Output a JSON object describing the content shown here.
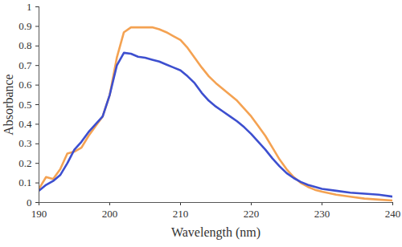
{
  "chart_data": {
    "type": "line",
    "x_label": "Wavelength (nm)",
    "y_label": "Absorbance",
    "x": [
      190,
      191,
      192,
      193,
      194,
      195,
      196,
      197,
      198,
      199,
      200,
      201,
      202,
      203,
      204,
      205,
      206,
      207,
      208,
      209,
      210,
      211,
      212,
      213,
      214,
      215,
      216,
      217,
      218,
      219,
      220,
      221,
      222,
      223,
      224,
      225,
      226,
      227,
      228,
      229,
      230,
      232,
      234,
      236,
      238,
      240
    ],
    "series": [
      {
        "color": "#f4a252",
        "values": [
          0.07,
          0.13,
          0.12,
          0.17,
          0.25,
          0.26,
          0.28,
          0.34,
          0.39,
          0.44,
          0.55,
          0.74,
          0.87,
          0.895,
          0.895,
          0.895,
          0.895,
          0.885,
          0.87,
          0.85,
          0.83,
          0.79,
          0.74,
          0.69,
          0.645,
          0.61,
          0.58,
          0.55,
          0.52,
          0.48,
          0.44,
          0.39,
          0.34,
          0.28,
          0.22,
          0.17,
          0.13,
          0.1,
          0.08,
          0.065,
          0.055,
          0.04,
          0.03,
          0.02,
          0.015,
          0.01
        ]
      },
      {
        "color": "#3d4fcf",
        "values": [
          0.06,
          0.09,
          0.11,
          0.14,
          0.2,
          0.27,
          0.31,
          0.36,
          0.4,
          0.44,
          0.55,
          0.7,
          0.765,
          0.76,
          0.745,
          0.74,
          0.73,
          0.72,
          0.705,
          0.69,
          0.675,
          0.645,
          0.61,
          0.56,
          0.52,
          0.49,
          0.465,
          0.44,
          0.415,
          0.385,
          0.35,
          0.31,
          0.27,
          0.225,
          0.185,
          0.15,
          0.125,
          0.105,
          0.09,
          0.08,
          0.07,
          0.06,
          0.05,
          0.045,
          0.04,
          0.03
        ]
      }
    ],
    "xlim": [
      190,
      240
    ],
    "xticks": [
      190,
      200,
      210,
      220,
      230,
      240
    ],
    "ylim": [
      0,
      1
    ],
    "yticks": [
      0,
      0.1,
      0.2,
      0.3,
      0.4,
      0.5,
      0.6,
      0.7,
      0.8,
      0.9,
      1
    ],
    "grid": false
  }
}
